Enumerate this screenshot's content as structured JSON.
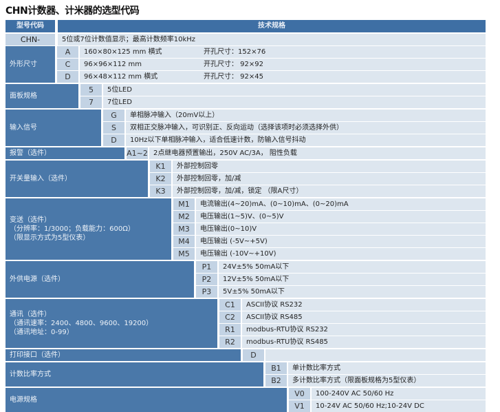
{
  "title": "CHN计数器、计米器的选型代码",
  "header": {
    "code_col": "型号代码",
    "spec_col": "技术规格"
  },
  "base": {
    "code": "CHN-",
    "desc": "5位或7位计数值显示；最高计数频率10kHz"
  },
  "groups": [
    {
      "label": "外形尺寸",
      "rows": [
        {
          "code": "A",
          "desc": "160×80×125 mm 横式",
          "extra": "开孔尺寸：152×76"
        },
        {
          "code": "C",
          "desc": " 96×96×112 mm",
          "extra": "开孔尺寸： 92×92"
        },
        {
          "code": "D",
          "desc": " 96×48×112 mm 横式",
          "extra": "开孔尺寸： 92×45"
        }
      ]
    },
    {
      "label": "面板规格",
      "rows": [
        {
          "code": "5",
          "desc": "5位LED"
        },
        {
          "code": "7",
          "desc": "7位LED"
        }
      ]
    },
    {
      "label": "输入信号",
      "rows": [
        {
          "code": "G",
          "desc": "单相脉冲输入（20mV以上）"
        },
        {
          "code": "S",
          "desc": "双相正交脉冲输入，可识别正、反向运动（选择该项时必须选择外供）"
        },
        {
          "code": "D",
          "desc": "10Hz以下单相脉冲输入，适合低速计数，防输入信号抖动"
        }
      ]
    },
    {
      "label": "报警（选件）",
      "rows": [
        {
          "code": "A1~2",
          "desc": "2点继电器预置输出，250V AC/3A， 阻性负载"
        }
      ]
    },
    {
      "label": "开关量输入（选件）",
      "rows": [
        {
          "code": "K1",
          "desc": "外部控制回零"
        },
        {
          "code": "K2",
          "desc": "外部控制回零，加/减"
        },
        {
          "code": "K3",
          "desc": "外部控制回零，加/减，锁定 （限A尺寸）"
        }
      ]
    },
    {
      "label": "变送（选件）\n（分辨率：1/3000；负载能力：600Ω）\n（限显示方式为5型仪表）",
      "rows": [
        {
          "code": "M1",
          "desc": "电流输出(4~20)mA、(0~10)mA、(0~20)mA"
        },
        {
          "code": "M2",
          "desc": "电压输出(1~5)V、(0~5)V"
        },
        {
          "code": "M3",
          "desc": "电压输出(0~10)V"
        },
        {
          "code": "M4",
          "desc": "电压输出 (-5V~+5V)"
        },
        {
          "code": "M5",
          "desc": "电压输出 (-10V~+10V)"
        }
      ]
    },
    {
      "label": "外供电源（选件）",
      "rows": [
        {
          "code": "P1",
          "desc": "24V±5% 50mA以下"
        },
        {
          "code": "P2",
          "desc": "12V±5% 50mA以下"
        },
        {
          "code": "P3",
          "desc": "5V±5% 50mA以下"
        }
      ]
    },
    {
      "label": "通讯（选件）\n（通讯速率：2400、4800、9600、19200）\n（通讯地址：0-99）",
      "rows": [
        {
          "code": "C1",
          "desc": "ASCII协议 RS232"
        },
        {
          "code": "C2",
          "desc": "ASCII协议 RS485"
        },
        {
          "code": "R1",
          "desc": "modbus-RTU协议 RS232"
        },
        {
          "code": "R2",
          "desc": "modbus-RTU协议 RS485"
        }
      ]
    },
    {
      "label": "打印接口（选件）",
      "rows": [
        {
          "code": "D",
          "desc": ""
        }
      ]
    },
    {
      "label": "计数比率方式",
      "rows": [
        {
          "code": "B1",
          "desc": "单计数比率方式"
        },
        {
          "code": "B2",
          "desc": "多计数比率方式（限面板规格为5型仪表）"
        }
      ]
    },
    {
      "label": "电源规格",
      "rows": [
        {
          "code": "V0",
          "desc": "100-240V AC 50/60 Hz"
        },
        {
          "code": "V1",
          "desc": "10-24V AC 50/60 Hz;10-24V DC"
        }
      ]
    }
  ]
}
